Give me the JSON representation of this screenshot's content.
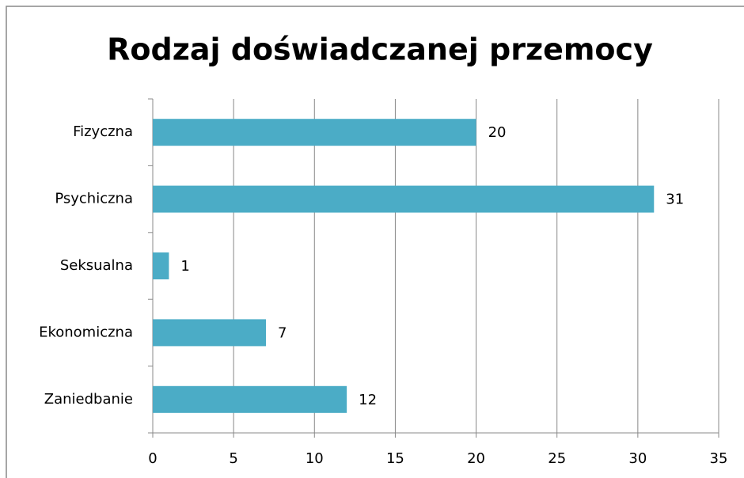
{
  "chart_data": {
    "type": "bar",
    "orientation": "horizontal",
    "title": "Rodzaj doświadczanej przemocy",
    "categories": [
      "Fizyczna",
      "Psychiczna",
      "Seksualna",
      "Ekonomiczna",
      "Zaniedbanie"
    ],
    "values": [
      20,
      31,
      1,
      7,
      12
    ],
    "color": "#4bacc6",
    "xlim": [
      0,
      35
    ],
    "xticks": [
      0,
      5,
      10,
      15,
      20,
      25,
      30,
      35
    ],
    "grid": true
  }
}
